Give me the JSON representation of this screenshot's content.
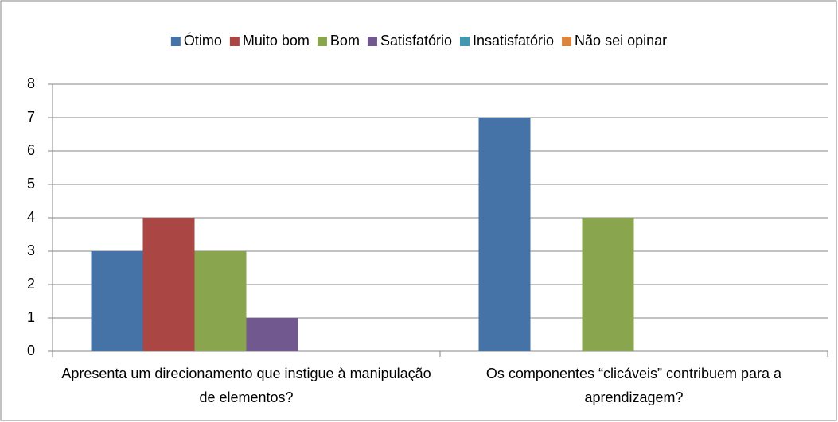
{
  "chart_data": {
    "type": "bar",
    "categories": [
      "Apresenta um direcionamento que instigue à manipulação de elementos?",
      "Os componentes “clicáveis” contribuem para a aprendizagem?"
    ],
    "series": [
      {
        "name": "Ótimo",
        "color": "#4572a7",
        "values": [
          3,
          7
        ]
      },
      {
        "name": "Muito bom",
        "color": "#aa4643",
        "values": [
          4,
          0
        ]
      },
      {
        "name": "Bom",
        "color": "#89a54e",
        "values": [
          3,
          4
        ]
      },
      {
        "name": "Satisfatório",
        "color": "#71588f",
        "values": [
          1,
          0
        ]
      },
      {
        "name": "Insatisfatório",
        "color": "#4198af",
        "values": [
          0,
          0
        ]
      },
      {
        "name": "Não sei opinar",
        "color": "#db843d",
        "values": [
          0,
          0
        ]
      }
    ],
    "ylim": [
      0,
      8
    ],
    "yticks": [
      0,
      1,
      2,
      3,
      4,
      5,
      6,
      7,
      8
    ],
    "grid": true,
    "legend": "top"
  }
}
